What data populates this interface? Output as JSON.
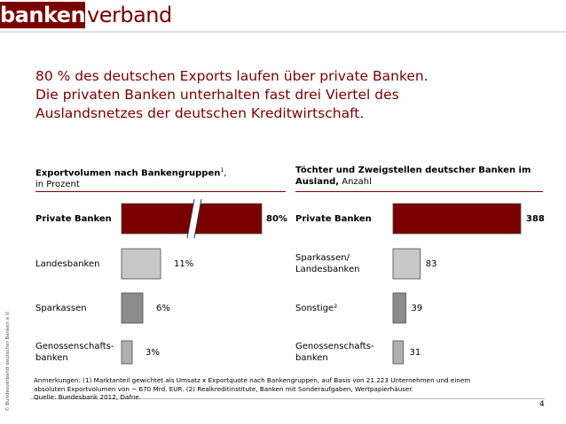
{
  "logo": {
    "part_a": "banken",
    "part_b": "verband"
  },
  "headline": [
    "80 % des deutschen Exports laufen über private Banken.",
    "Die privaten Banken unterhalten fast drei Viertel des",
    "Auslandsnetzes der deutschen Kreditwirtschaft."
  ],
  "copyright": "© Bundesverband deutscher Banken e.V.",
  "left_panel": {
    "title_bold": "Exportvolumen nach Bankengruppen",
    "title_sup": "1",
    "title_comma": ",",
    "title_sub": "in Prozent"
  },
  "right_panel": {
    "title_bold": "Töchter und Zweigstellen deutscher Banken im Ausland,",
    "title_bold_l1": "Töchter und Zweigstellen deutscher Banken im",
    "title_bold_l2": "Ausland,",
    "title_rest": " Anzahl"
  },
  "colors": {
    "dark_red": "#7a0000",
    "light_gray": "#c8c8c8",
    "dark_gray": "#8c8c8c",
    "mid_gray": "#b0b0b0"
  },
  "chart_data": [
    {
      "type": "bar",
      "orientation": "horizontal",
      "title": "Exportvolumen nach Bankengruppen1, in Prozent",
      "categories": [
        "Private Banken",
        "Landesbanken",
        "Sparkassen",
        "Genossenschafts-banken"
      ],
      "category_lines": [
        [
          "Private Banken"
        ],
        [
          "Landesbanken"
        ],
        [
          "Sparkassen"
        ],
        [
          "Genossenschafts-",
          "banken"
        ]
      ],
      "values": [
        80,
        11,
        6,
        3
      ],
      "value_labels": [
        "80%",
        "11%",
        "6%",
        "3%"
      ],
      "axis_break": true
    },
    {
      "type": "bar",
      "orientation": "horizontal",
      "title": "Töchter und Zweigstellen deutscher Banken im Ausland, Anzahl",
      "categories": [
        "Private Banken",
        "Sparkassen/Landesbanken",
        "Sonstige2",
        "Genossenschafts-banken"
      ],
      "category_lines": [
        [
          "Private Banken"
        ],
        [
          "Sparkassen/",
          "Landesbanken"
        ],
        [
          "Sonstige²"
        ],
        [
          "Genossenschafts-",
          "banken"
        ]
      ],
      "values": [
        388,
        83,
        39,
        31
      ],
      "value_labels": [
        "388",
        "83",
        "39",
        "31"
      ]
    }
  ],
  "notes": [
    "Anmerkungen: (1) Marktanteil gewichtet als Umsatz x Exportquote nach Bankengruppen, auf Basis von 21.223 Unternehmen und einem",
    "absoluten Exportvolumen von ~ 670 Mrd. EUR. (2) Realkreditinstitute, Banken mit Sonderaufgaben, Wertpapierhäuser.",
    "Quelle: Bundesbank 2012, Dafne."
  ],
  "page_number": "4"
}
